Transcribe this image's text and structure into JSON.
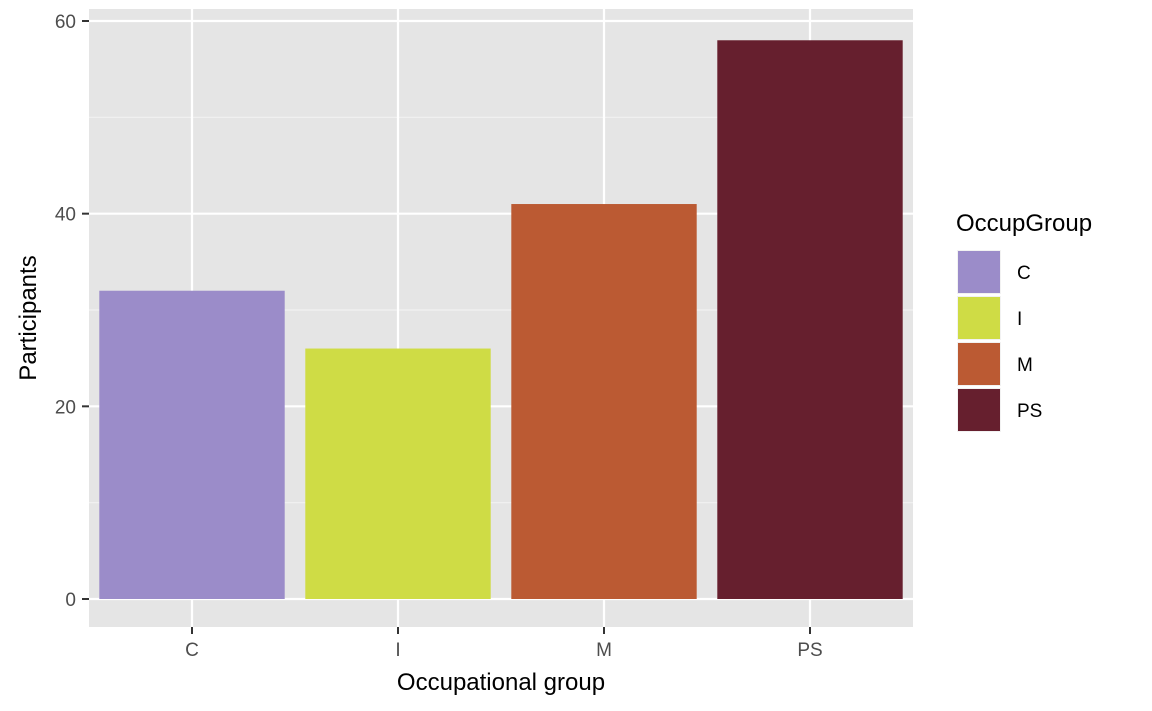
{
  "chart_data": {
    "type": "bar",
    "categories": [
      "C",
      "I",
      "M",
      "PS"
    ],
    "values": [
      32,
      26,
      41,
      58
    ],
    "colors": [
      "#9b8cc9",
      "#cfdc45",
      "#bb5a33",
      "#661f2e"
    ],
    "xlabel": "Occupational group",
    "ylabel": "Participants",
    "ylim": [
      0,
      60
    ],
    "yticks": [
      0,
      20,
      40,
      60
    ],
    "grid": true,
    "panel_background": "#e5e5e5",
    "legend": {
      "title": "OccupGroup",
      "position": "right",
      "items": [
        "C",
        "I",
        "M",
        "PS"
      ]
    }
  }
}
